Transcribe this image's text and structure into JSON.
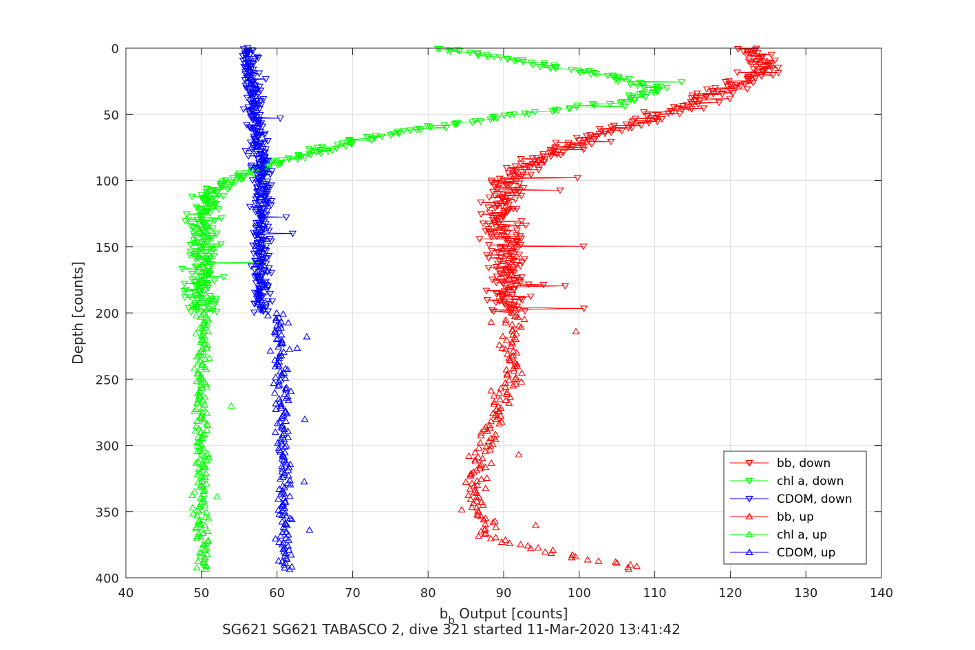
{
  "chart_data": {
    "type": "scatter",
    "title": "SG621 SG621 TABASCO 2, dive 321 started 11-Mar-2020 13:41:42",
    "xlabel_main": "b",
    "xlabel_sub": "b",
    "xlabel_rest": " Output [counts]",
    "ylabel": "Depth [counts]",
    "xlim": [
      40,
      140
    ],
    "ylim": [
      0,
      400
    ],
    "y_reversed": true,
    "grid": true,
    "legend_position": "lower-right",
    "xticks": [
      "40",
      "50",
      "60",
      "70",
      "80",
      "90",
      "100",
      "110",
      "120",
      "130",
      "140"
    ],
    "yticks": [
      "0",
      "50",
      "100",
      "150",
      "200",
      "250",
      "300",
      "350",
      "400"
    ],
    "series": [
      {
        "name": "bb, down",
        "color": "#ff0000",
        "marker": "triangle-down",
        "profile": [
          [
            0,
            123
          ],
          [
            10,
            125
          ],
          [
            20,
            123
          ],
          [
            30,
            120
          ],
          [
            40,
            116
          ],
          [
            50,
            111
          ],
          [
            60,
            105
          ],
          [
            70,
            100
          ],
          [
            80,
            96
          ],
          [
            90,
            93
          ],
          [
            100,
            91
          ],
          [
            120,
            90
          ],
          [
            150,
            90
          ],
          [
            180,
            91
          ],
          [
            200,
            91
          ]
        ],
        "spread": 4,
        "connected": true,
        "ymax": 200
      },
      {
        "name": "chl a, down",
        "color": "#00ff00",
        "marker": "triangle-down",
        "profile": [
          [
            0,
            81
          ],
          [
            10,
            93
          ],
          [
            20,
            103
          ],
          [
            30,
            110
          ],
          [
            40,
            106
          ],
          [
            50,
            92
          ],
          [
            60,
            80
          ],
          [
            70,
            70
          ],
          [
            80,
            64
          ],
          [
            90,
            58
          ],
          [
            100,
            54
          ],
          [
            110,
            51
          ],
          [
            130,
            50
          ],
          [
            200,
            50
          ]
        ],
        "spread": 3,
        "connected": true,
        "ymax": 200
      },
      {
        "name": "CDOM, down",
        "color": "#0000ff",
        "marker": "triangle-down",
        "profile": [
          [
            0,
            56
          ],
          [
            50,
            57
          ],
          [
            100,
            58
          ],
          [
            150,
            58
          ],
          [
            200,
            58
          ]
        ],
        "spread": 1.8,
        "connected": true,
        "ymax": 200
      },
      {
        "name": "bb, up",
        "color": "#ff0000",
        "marker": "triangle-up",
        "profile": [
          [
            200,
            91
          ],
          [
            250,
            91
          ],
          [
            290,
            88
          ],
          [
            310,
            87
          ],
          [
            340,
            86
          ],
          [
            370,
            88
          ],
          [
            385,
            100
          ],
          [
            392,
            108
          ]
        ],
        "spread": 2.5,
        "connected": false,
        "ymin": 200
      },
      {
        "name": "chl a, up",
        "color": "#00ff00",
        "marker": "triangle-up",
        "profile": [
          [
            200,
            50
          ],
          [
            300,
            50
          ],
          [
            392,
            50
          ]
        ],
        "spread": 1.5,
        "connected": false,
        "ymin": 200
      },
      {
        "name": "CDOM, up",
        "color": "#0000ff",
        "marker": "triangle-up",
        "profile": [
          [
            200,
            60
          ],
          [
            300,
            61
          ],
          [
            392,
            61
          ]
        ],
        "spread": 1.5,
        "connected": false,
        "ymin": 200
      }
    ]
  }
}
